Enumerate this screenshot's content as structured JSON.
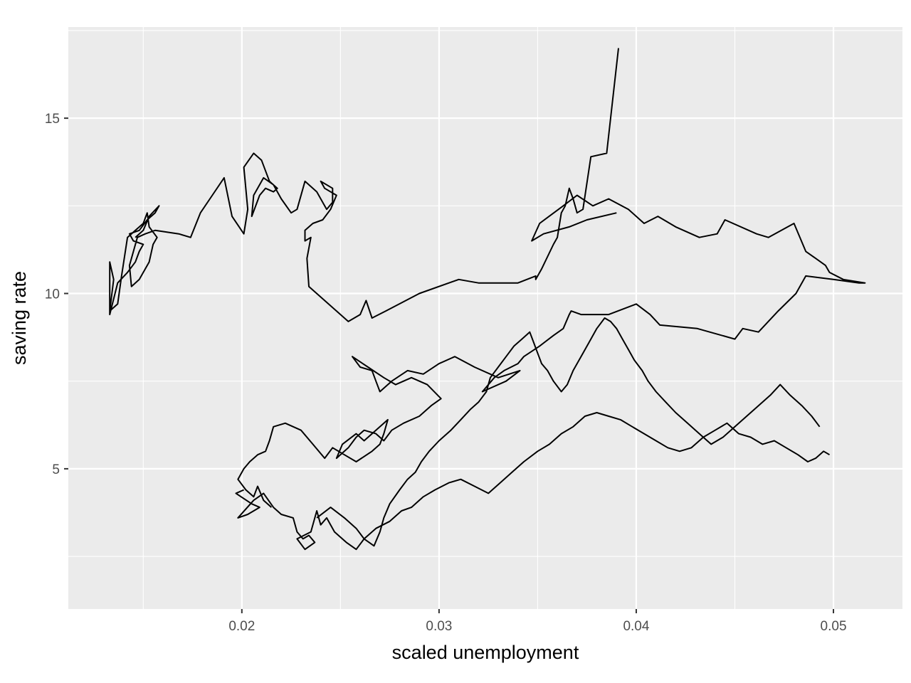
{
  "chart_data": {
    "type": "line",
    "title": "",
    "xlabel": "scaled unemployment",
    "ylabel": "saving rate",
    "xlim": [
      0.0112,
      0.0535
    ],
    "ylim": [
      1.0,
      17.6
    ],
    "x_ticks": [
      0.02,
      0.03,
      0.04,
      0.05
    ],
    "x_tick_labels": [
      "0.02",
      "0.03",
      "0.04",
      "0.05"
    ],
    "y_ticks": [
      5,
      10,
      15
    ],
    "y_tick_labels": [
      "5",
      "10",
      "15"
    ],
    "grid": true,
    "legend": "none",
    "colors": {
      "panel": "#ebebeb",
      "grid": "#ffffff",
      "line": "#000000",
      "tick": "#333333"
    },
    "series": [
      {
        "x": [
          0.0391,
          0.0385,
          0.0377,
          0.0373,
          0.037,
          0.0368,
          0.0366,
          0.0364,
          0.0362,
          0.036,
          0.0358,
          0.0352,
          0.0349,
          0.0349,
          0.034,
          0.032,
          0.031,
          0.029,
          0.0273,
          0.0266,
          0.0263,
          0.026,
          0.0254,
          0.0234,
          0.0233,
          0.0235,
          0.0232,
          0.0232,
          0.0236,
          0.0241,
          0.0245,
          0.0248,
          0.0242,
          0.024,
          0.0246,
          0.0246,
          0.0243,
          0.0241,
          0.0238,
          0.0232,
          0.0228,
          0.0225,
          0.022,
          0.0216,
          0.0211,
          0.0206,
          0.0205,
          0.0209,
          0.0212,
          0.0216,
          0.0218,
          0.0214,
          0.021,
          0.0206,
          0.0201,
          0.0203,
          0.0201,
          0.0195,
          0.0191,
          0.0185,
          0.0179,
          0.0174,
          0.0168,
          0.0156,
          0.0151,
          0.0147,
          0.0143,
          0.0144,
          0.0148,
          0.0153,
          0.0155,
          0.0157,
          0.0153,
          0.0152,
          0.015,
          0.0146,
          0.0142,
          0.0139,
          0.0137,
          0.0133,
          0.0135,
          0.0133,
          0.0133,
          0.0137,
          0.0142,
          0.0146,
          0.0148,
          0.015,
          0.0145,
          0.0143,
          0.0148,
          0.0152,
          0.0156,
          0.0158,
          0.0153,
          0.015,
          0.0146
        ],
        "y": [
          17.0,
          14.0,
          13.9,
          12.4,
          12.3,
          12.7,
          13.0,
          12.5,
          12.3,
          11.6,
          11.4,
          10.7,
          10.4,
          10.5,
          10.3,
          10.3,
          10.4,
          10.0,
          9.5,
          9.3,
          9.8,
          9.4,
          9.2,
          10.2,
          11.0,
          11.6,
          11.5,
          11.8,
          12.0,
          12.1,
          12.4,
          12.8,
          13.0,
          13.2,
          13.0,
          12.6,
          12.4,
          12.6,
          12.9,
          13.2,
          12.4,
          12.3,
          12.7,
          13.1,
          13.3,
          12.8,
          12.2,
          12.8,
          13.0,
          12.9,
          13.0,
          13.2,
          13.8,
          14.0,
          13.6,
          12.4,
          11.7,
          12.2,
          13.3,
          12.8,
          12.3,
          11.6,
          11.7,
          11.8,
          11.7,
          11.6,
          10.8,
          10.2,
          10.4,
          10.9,
          11.4,
          11.6,
          11.9,
          12.3,
          12.0,
          11.8,
          11.6,
          10.5,
          9.7,
          9.5,
          10.4,
          10.9,
          9.4,
          10.3,
          10.6,
          10.9,
          11.2,
          11.4,
          11.5,
          11.7,
          11.8,
          12.1,
          12.3,
          12.5,
          12.2,
          11.8,
          11.6
        ]
      },
      {
        "x": [
          0.039,
          0.0375,
          0.0366,
          0.0353,
          0.0347,
          0.0351,
          0.0363,
          0.037,
          0.0378,
          0.0386,
          0.0396,
          0.0404,
          0.0411,
          0.042,
          0.0432,
          0.0441,
          0.0445,
          0.0461,
          0.0467,
          0.048,
          0.0486,
          0.0491,
          0.0496,
          0.0498,
          0.0505,
          0.0516,
          0.0513,
          0.05,
          0.0486,
          0.0481,
          0.0472,
          0.0462,
          0.0454,
          0.045,
          0.0431,
          0.0412,
          0.0407,
          0.04,
          0.0386,
          0.0376,
          0.0372,
          0.0367,
          0.0366,
          0.0363,
          0.0358,
          0.0351,
          0.0343,
          0.034,
          0.0333,
          0.0328,
          0.0325,
          0.0322,
          0.0334,
          0.0341,
          0.033,
          0.0318,
          0.0308,
          0.03,
          0.0292,
          0.0284,
          0.0276,
          0.027,
          0.0268,
          0.0266,
          0.026,
          0.0256,
          0.0264,
          0.0272,
          0.0278,
          0.0286,
          0.0294,
          0.0301,
          0.0296,
          0.029,
          0.0282,
          0.0276,
          0.0272,
          0.0268,
          0.0262,
          0.0258,
          0.0254,
          0.0248,
          0.0251,
          0.0258,
          0.0262,
          0.027,
          0.0274,
          0.0272,
          0.027,
          0.0266,
          0.0258,
          0.0252,
          0.0246,
          0.0242,
          0.0236,
          0.023,
          0.0222,
          0.0216,
          0.0214,
          0.0212,
          0.0208,
          0.0204,
          0.0201,
          0.0198,
          0.0202,
          0.0206,
          0.0208,
          0.0211,
          0.0215
        ],
        "y": [
          12.3,
          12.1,
          11.9,
          11.7,
          11.5,
          12.0,
          12.5,
          12.8,
          12.5,
          12.7,
          12.4,
          12.0,
          12.2,
          11.9,
          11.6,
          11.7,
          12.1,
          11.7,
          11.6,
          12.0,
          11.2,
          11.0,
          10.8,
          10.6,
          10.4,
          10.3,
          10.3,
          10.4,
          10.5,
          10.0,
          9.5,
          8.9,
          9.0,
          8.7,
          9.0,
          9.1,
          9.4,
          9.7,
          9.4,
          9.4,
          9.4,
          9.5,
          9.4,
          9.0,
          8.8,
          8.5,
          8.2,
          8.0,
          7.8,
          7.6,
          7.4,
          7.2,
          7.5,
          7.8,
          7.6,
          7.9,
          8.2,
          8.0,
          7.7,
          7.8,
          7.5,
          7.2,
          7.5,
          7.8,
          7.9,
          8.2,
          7.9,
          7.6,
          7.4,
          7.6,
          7.4,
          7.0,
          6.8,
          6.5,
          6.3,
          6.1,
          5.8,
          6.0,
          6.1,
          5.9,
          5.6,
          5.3,
          5.7,
          6.0,
          5.8,
          6.2,
          6.4,
          6.0,
          5.7,
          5.5,
          5.2,
          5.4,
          5.6,
          5.3,
          5.7,
          6.1,
          6.3,
          6.2,
          5.8,
          5.5,
          5.4,
          5.2,
          5.0,
          4.7,
          4.4,
          4.2,
          4.5,
          4.1,
          3.9
        ]
      },
      {
        "x": [
          0.0201,
          0.0197,
          0.0205,
          0.0209,
          0.0203,
          0.0198,
          0.0206,
          0.0211,
          0.0216,
          0.022,
          0.0226,
          0.0228,
          0.0231,
          0.0234,
          0.0237,
          0.0232,
          0.0228,
          0.0235,
          0.0238,
          0.024,
          0.0243,
          0.0247,
          0.0253,
          0.0258,
          0.0262,
          0.0268,
          0.0275,
          0.0281,
          0.0286,
          0.0292,
          0.0298,
          0.0305,
          0.0311,
          0.0318,
          0.0325,
          0.0331,
          0.0337,
          0.0343,
          0.035,
          0.0356,
          0.0362,
          0.0368,
          0.0374,
          0.038,
          0.0386,
          0.0392,
          0.0398,
          0.0404,
          0.041,
          0.0416,
          0.0422,
          0.0428,
          0.0434,
          0.044,
          0.0446,
          0.0452,
          0.0458,
          0.0464,
          0.047,
          0.0476,
          0.0482,
          0.0487,
          0.0491,
          0.0495,
          0.0498
        ],
        "y": [
          4.4,
          4.3,
          4.0,
          3.9,
          3.7,
          3.6,
          4.1,
          4.3,
          3.9,
          3.7,
          3.6,
          3.2,
          3.0,
          3.1,
          2.9,
          2.7,
          3.0,
          3.2,
          3.8,
          3.4,
          3.6,
          3.2,
          2.9,
          2.7,
          3.0,
          3.3,
          3.5,
          3.8,
          3.9,
          4.2,
          4.4,
          4.6,
          4.7,
          4.5,
          4.3,
          4.6,
          4.9,
          5.2,
          5.5,
          5.7,
          6.0,
          6.2,
          6.5,
          6.6,
          6.5,
          6.4,
          6.2,
          6.0,
          5.8,
          5.6,
          5.5,
          5.6,
          5.9,
          6.1,
          6.3,
          6.0,
          5.9,
          5.7,
          5.8,
          5.6,
          5.4,
          5.2,
          5.3,
          5.5,
          5.4
        ]
      },
      {
        "x": [
          0.0238,
          0.0245,
          0.0252,
          0.0258,
          0.0262,
          0.0267,
          0.027,
          0.0272,
          0.0275,
          0.028,
          0.0284,
          0.0288,
          0.0291,
          0.0295,
          0.03,
          0.0306,
          0.0311,
          0.0316,
          0.032,
          0.0324,
          0.0326,
          0.033,
          0.0334,
          0.0338,
          0.0342,
          0.0346,
          0.0348,
          0.035,
          0.0352,
          0.0355,
          0.0358,
          0.0362,
          0.0365,
          0.0368,
          0.0372,
          0.0376,
          0.038,
          0.0384,
          0.0387,
          0.039,
          0.0393,
          0.0396,
          0.0399,
          0.0403,
          0.0406,
          0.041,
          0.0415,
          0.042,
          0.0426,
          0.0432,
          0.0438,
          0.0444,
          0.045,
          0.0456,
          0.0462,
          0.0468,
          0.0473,
          0.0478,
          0.0484,
          0.0489,
          0.0493
        ],
        "y": [
          3.6,
          3.9,
          3.6,
          3.3,
          3.0,
          2.8,
          3.2,
          3.6,
          4.0,
          4.4,
          4.7,
          4.9,
          5.2,
          5.5,
          5.8,
          6.1,
          6.4,
          6.7,
          6.9,
          7.2,
          7.6,
          7.9,
          8.2,
          8.5,
          8.7,
          8.9,
          8.6,
          8.3,
          8.0,
          7.8,
          7.5,
          7.2,
          7.4,
          7.8,
          8.2,
          8.6,
          9.0,
          9.3,
          9.2,
          9.0,
          8.7,
          8.4,
          8.1,
          7.8,
          7.5,
          7.2,
          6.9,
          6.6,
          6.3,
          6.0,
          5.7,
          5.9,
          6.2,
          6.5,
          6.8,
          7.1,
          7.4,
          7.1,
          6.8,
          6.5,
          6.2
        ]
      }
    ]
  }
}
